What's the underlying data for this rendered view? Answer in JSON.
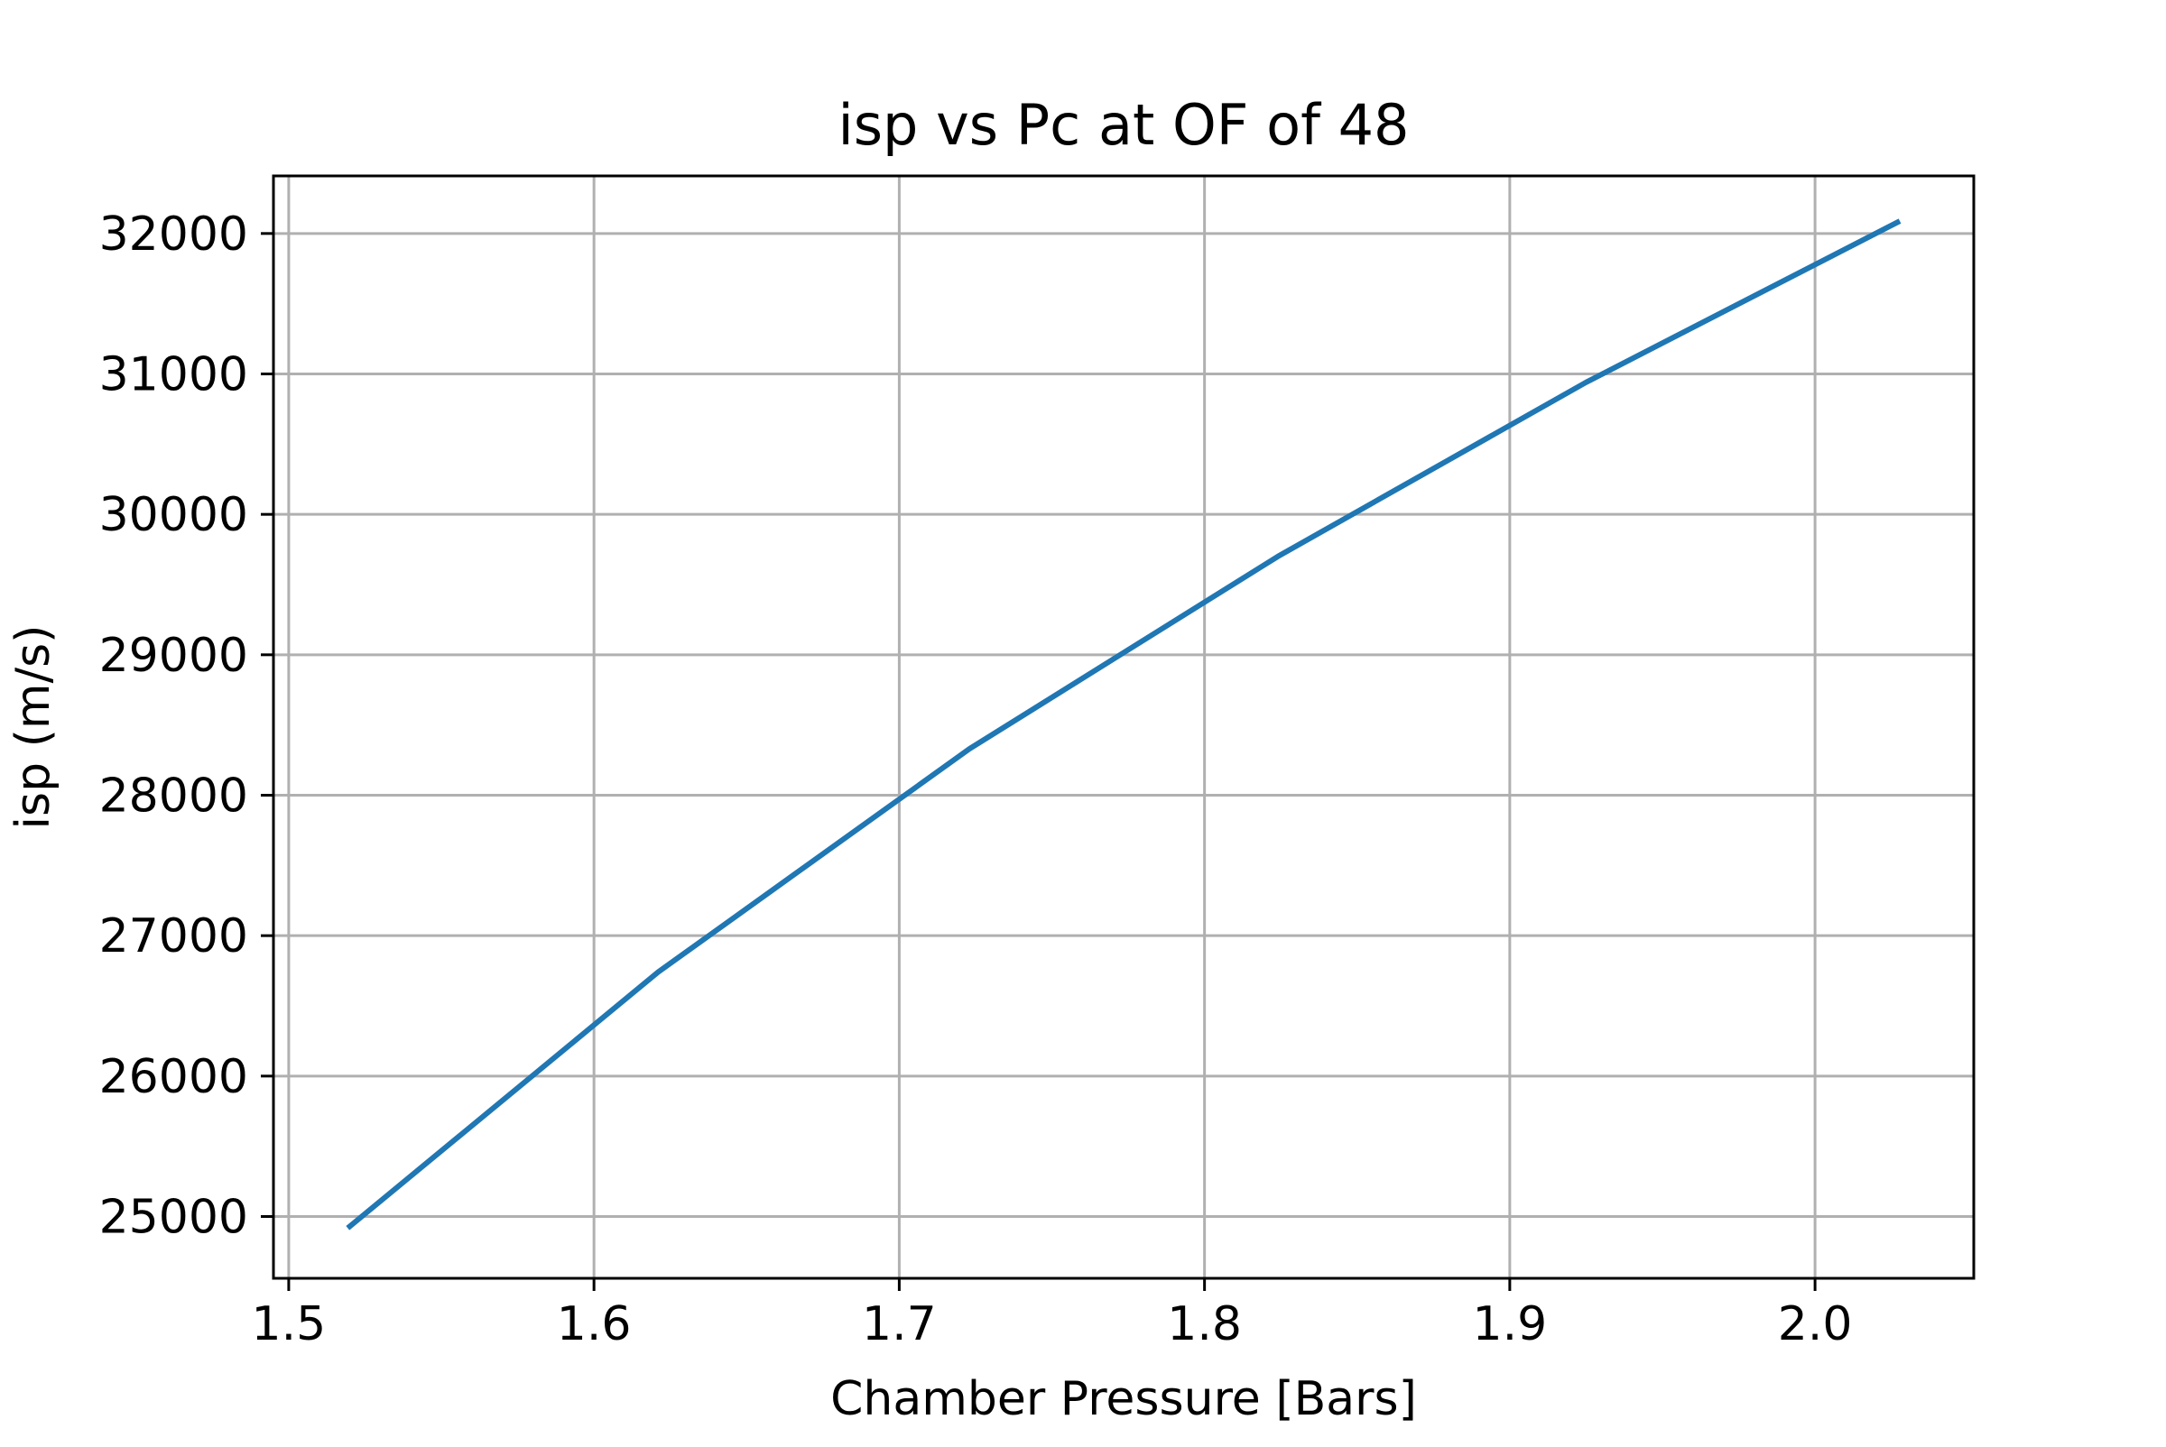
{
  "chart_data": {
    "type": "line",
    "title": "isp vs Pc at OF of 48",
    "xlabel": "Chamber Pressure [Bars]",
    "ylabel": "isp (m/s)",
    "xlim": [
      1.495,
      2.052
    ],
    "ylim": [
      24560,
      32410
    ],
    "grid": true,
    "x_ticks": [
      1.5,
      1.6,
      1.7,
      1.8,
      1.9,
      2.0
    ],
    "x_tick_labels": [
      "1.5",
      "1.6",
      "1.7",
      "1.8",
      "1.9",
      "2.0"
    ],
    "y_ticks": [
      25000,
      26000,
      27000,
      28000,
      29000,
      30000,
      31000,
      32000
    ],
    "y_tick_labels": [
      "25000",
      "26000",
      "27000",
      "28000",
      "29000",
      "30000",
      "31000",
      "32000"
    ],
    "series": [
      {
        "color": "#1f77b4",
        "x": [
          1.52,
          1.621,
          1.723,
          1.824,
          1.925,
          2.027
        ],
        "y": [
          24930,
          26740,
          28330,
          29700,
          30940,
          32080
        ]
      }
    ]
  }
}
